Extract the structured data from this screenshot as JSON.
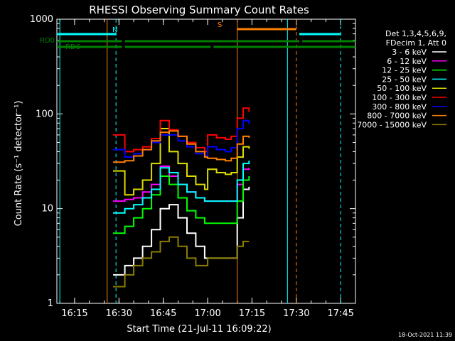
{
  "chart_data": {
    "type": "line",
    "title": "RHESSI Observing Summary Count Rates",
    "xlabel": "Start Time (21-Jul-11 16:09:22)",
    "ylabel": "Count Rate (s⁻¹ detector⁻¹)",
    "yscale": "log",
    "ylim": [
      1,
      1000
    ],
    "xlim": [
      "16:09",
      "17:50"
    ],
    "x_ticks": [
      "16:15",
      "16:30",
      "16:45",
      "17:00",
      "17:15",
      "17:30",
      "17:45"
    ],
    "y_ticks": [
      "1",
      "10",
      "100",
      "1000"
    ],
    "grid": false,
    "legend_position": "right",
    "legend_header": [
      "Det 1,3,4,5,6,9,",
      "FDecim 1, Att 0"
    ],
    "timestamp": "18-Oct-2021 11:39",
    "series": [
      {
        "name": "3 - 6 keV",
        "color": "#ffffff",
        "x": [
          "16:28",
          "16:31",
          "16:32",
          "16:35",
          "16:38",
          "16:41",
          "16:44",
          "16:47",
          "16:50",
          "16:53",
          "16:56",
          "16:59",
          "17:00",
          "17:03",
          "17:06",
          "17:08",
          "17:10",
          "17:12",
          "17:14"
        ],
        "y": [
          2.0,
          2.0,
          2.5,
          3.0,
          4.0,
          6.0,
          10.0,
          11.0,
          8.0,
          5.5,
          4.0,
          3.0,
          3.0,
          3.0,
          3.0,
          3.0,
          8.0,
          16.0,
          17.0
        ]
      },
      {
        "name": "6 - 12 keV",
        "color": "#ff00ff",
        "x": [
          "16:28",
          "16:31",
          "16:32",
          "16:35",
          "16:38",
          "16:41",
          "16:44",
          "16:47",
          "16:50",
          "16:53",
          "16:56",
          "16:59",
          "17:00",
          "17:03",
          "17:06",
          "17:08",
          "17:10",
          "17:12",
          "17:14"
        ],
        "y": [
          12.0,
          12.0,
          12.5,
          13.0,
          15.0,
          18.0,
          28.0,
          22.0,
          18.0,
          15.0,
          13.0,
          12.0,
          12.0,
          12.0,
          12.0,
          12.0,
          18.0,
          26.0,
          27.0
        ]
      },
      {
        "name": "12 - 25 keV",
        "color": "#00ff00",
        "x": [
          "16:28",
          "16:31",
          "16:32",
          "16:35",
          "16:38",
          "16:41",
          "16:44",
          "16:47",
          "16:50",
          "16:53",
          "16:56",
          "16:59",
          "17:00",
          "17:03",
          "17:06",
          "17:08",
          "17:10",
          "17:12",
          "17:14"
        ],
        "y": [
          5.5,
          5.5,
          6.5,
          8.0,
          10.0,
          14.0,
          22.0,
          18.0,
          13.0,
          9.5,
          8.0,
          7.0,
          7.0,
          7.0,
          7.0,
          7.0,
          12.0,
          20.0,
          22.0
        ]
      },
      {
        "name": "25 - 50 keV",
        "color": "#00ffff",
        "x": [
          "16:28",
          "16:31",
          "16:32",
          "16:35",
          "16:38",
          "16:41",
          "16:44",
          "16:47",
          "16:50",
          "16:53",
          "16:56",
          "16:59",
          "17:00",
          "17:03",
          "17:06",
          "17:08",
          "17:10",
          "17:12",
          "17:14"
        ],
        "y": [
          9.0,
          9.0,
          10.0,
          11.0,
          13.0,
          16.0,
          27.0,
          24.0,
          18.0,
          15.0,
          13.0,
          12.0,
          12.0,
          12.0,
          12.0,
          12.0,
          20.0,
          30.0,
          32.0
        ]
      },
      {
        "name": "50 - 100 keV",
        "color": "#dddd00",
        "x": [
          "16:28",
          "16:31",
          "16:32",
          "16:35",
          "16:38",
          "16:41",
          "16:44",
          "16:47",
          "16:50",
          "16:53",
          "16:56",
          "16:59",
          "17:00",
          "17:03",
          "17:06",
          "17:08",
          "17:10",
          "17:12",
          "17:14"
        ],
        "y": [
          25.0,
          25.0,
          14.0,
          16.0,
          20.0,
          30.0,
          70.0,
          40.0,
          30.0,
          22.0,
          18.0,
          16.0,
          26.0,
          24.0,
          23.0,
          24.0,
          35.0,
          45.0,
          43.0
        ]
      },
      {
        "name": "100 - 300 keV",
        "color": "#ff0000",
        "x": [
          "16:28",
          "16:31",
          "16:32",
          "16:35",
          "16:38",
          "16:41",
          "16:44",
          "16:47",
          "16:50",
          "16:53",
          "16:56",
          "16:59",
          "17:00",
          "17:03",
          "17:06",
          "17:08",
          "17:10",
          "17:12",
          "17:14"
        ],
        "y": [
          60.0,
          60.0,
          40.0,
          42.0,
          45.0,
          55.0,
          85.0,
          68.0,
          58.0,
          50.0,
          44.0,
          40.0,
          60.0,
          56.0,
          54.0,
          58.0,
          90.0,
          115.0,
          105.0
        ]
      },
      {
        "name": "300 - 800 keV",
        "color": "#0000ff",
        "x": [
          "16:28",
          "16:31",
          "16:32",
          "16:35",
          "16:38",
          "16:41",
          "16:44",
          "16:47",
          "16:50",
          "16:53",
          "16:56",
          "16:59",
          "17:00",
          "17:03",
          "17:06",
          "17:08",
          "17:10",
          "17:12",
          "17:14"
        ],
        "y": [
          42.0,
          42.0,
          35.0,
          38.0,
          42.0,
          50.0,
          60.0,
          60.0,
          52.0,
          45.0,
          38.0,
          36.0,
          45.0,
          42.0,
          40.0,
          44.0,
          70.0,
          85.0,
          78.0
        ]
      },
      {
        "name": "800 - 7000 keV",
        "color": "#ff8000",
        "x": [
          "16:28",
          "16:31",
          "16:32",
          "16:35",
          "16:38",
          "16:41",
          "16:44",
          "16:47",
          "16:50",
          "16:53",
          "16:56",
          "16:59",
          "17:00",
          "17:03",
          "17:06",
          "17:08",
          "17:10",
          "17:12",
          "17:14"
        ],
        "y": [
          31.0,
          31.0,
          32.0,
          36.0,
          42.0,
          52.0,
          64.0,
          66.0,
          58.0,
          48.0,
          40.0,
          35.0,
          34.0,
          33.0,
          32.0,
          34.0,
          48.0,
          58.0,
          56.0
        ]
      },
      {
        "name": "7000 - 15000 keV",
        "color": "#8b7d00",
        "x": [
          "16:28",
          "16:31",
          "16:32",
          "16:35",
          "16:38",
          "16:41",
          "16:44",
          "16:47",
          "16:50",
          "16:53",
          "16:56",
          "16:59",
          "17:00",
          "17:03",
          "17:06",
          "17:08",
          "17:10",
          "17:12",
          "17:14"
        ],
        "y": [
          1.5,
          1.5,
          2.0,
          2.5,
          3.0,
          3.5,
          4.5,
          5.0,
          4.0,
          3.0,
          2.5,
          2.5,
          3.0,
          3.0,
          3.0,
          3.0,
          4.0,
          4.5,
          4.5
        ]
      }
    ],
    "flags": [
      {
        "label": "RD0",
        "color": "#008000",
        "segments": [
          [
            "16:09",
            "16:31"
          ],
          [
            "16:32",
            "17:31"
          ],
          [
            "17:32",
            "17:50"
          ]
        ]
      },
      {
        "label": "RD6",
        "color": "#008000",
        "segments": [
          [
            "16:09",
            "16:31"
          ],
          [
            "16:32",
            "17:01"
          ],
          [
            "17:02",
            "17:50"
          ]
        ]
      },
      {
        "label": "N",
        "color": "#00ffff",
        "segments": [
          [
            "16:09",
            "16:29"
          ],
          [
            "17:31",
            "17:45"
          ]
        ]
      },
      {
        "label": "S",
        "color": "#ff8000",
        "segments": [
          [
            "17:10",
            "17:30"
          ]
        ]
      }
    ],
    "vlines": [
      {
        "x": "16:10",
        "color": "#00ffff",
        "style": "solid"
      },
      {
        "x": "16:26",
        "color": "#ff8000",
        "style": "solid"
      },
      {
        "x": "16:29",
        "color": "#00ffff",
        "style": "dashed"
      },
      {
        "x": "17:10",
        "color": "#ff8000",
        "style": "solid"
      },
      {
        "x": "17:27",
        "color": "#00ffff",
        "style": "solid"
      },
      {
        "x": "17:30",
        "color": "#ff8000",
        "style": "dashed"
      },
      {
        "x": "17:45",
        "color": "#00ffff",
        "style": "dashed"
      }
    ]
  }
}
